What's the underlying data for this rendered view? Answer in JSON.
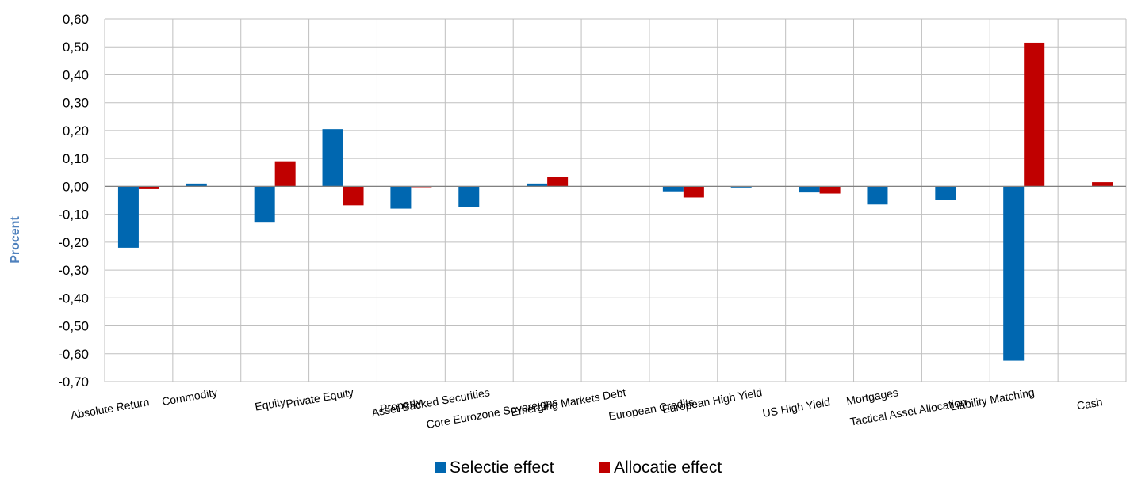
{
  "chart_data": {
    "type": "bar",
    "ylabel": "Procent",
    "ylim": [
      -0.7,
      0.6
    ],
    "ytick_step": 0.1,
    "grid": true,
    "legend_position": "bottom",
    "categories": [
      "Absolute Return",
      "Commodity",
      "Equity",
      "Private Equity",
      "Property",
      "Asset Backed Securities",
      "Core Eurozone Sovereigns",
      "Emerging Markets Debt",
      "European Credits",
      "European High Yield",
      "US High Yield",
      "Mortgages",
      "Tactical Asset Allocation",
      "Liability Matching",
      "Cash"
    ],
    "series": [
      {
        "name": "Selectie effect",
        "color": "#0067B0",
        "values": [
          -0.22,
          0.01,
          -0.13,
          0.205,
          -0.08,
          -0.075,
          0.01,
          0.0,
          -0.018,
          -0.004,
          -0.022,
          -0.065,
          -0.05,
          -0.625,
          0.0
        ]
      },
      {
        "name": "Allocatie effect",
        "color": "#C00000",
        "values": [
          -0.01,
          0.0,
          0.09,
          -0.068,
          -0.003,
          0.0,
          0.035,
          0.0,
          -0.04,
          0.0,
          -0.026,
          0.0,
          0.0,
          0.515,
          0.015
        ]
      }
    ]
  },
  "colors": {
    "ylabel": "#4F81BD",
    "grid": "#BFBFBF",
    "axis": "#808080"
  }
}
